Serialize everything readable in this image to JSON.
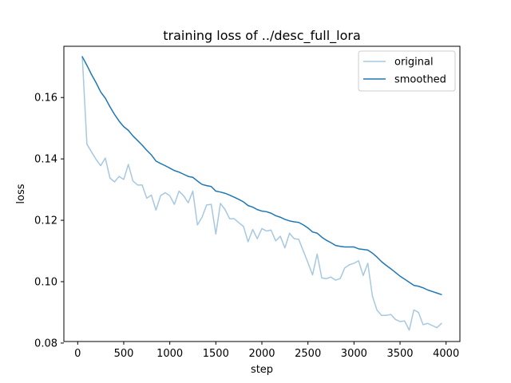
{
  "chart_data": {
    "type": "line",
    "title": "training loss of ../desc_full_lora",
    "xlabel": "step",
    "ylabel": "loss",
    "xlim": [
      -150,
      4150
    ],
    "ylim": [
      0.0805,
      0.1767
    ],
    "xticks": [
      0,
      500,
      1000,
      1500,
      2000,
      2500,
      3000,
      3500,
      4000
    ],
    "xtick_labels": [
      "0",
      "500",
      "1000",
      "1500",
      "2000",
      "2500",
      "3000",
      "3500",
      "4000"
    ],
    "yticks": [
      0.08,
      0.1,
      0.12,
      0.14,
      0.16
    ],
    "ytick_labels": [
      "0.08",
      "0.10",
      "0.12",
      "0.14",
      "0.16"
    ],
    "grid": false,
    "legend_position": "top-right",
    "series": [
      {
        "name": "original",
        "color": "#a6c8e0",
        "x": [
          50,
          100,
          150,
          200,
          250,
          300,
          350,
          400,
          450,
          500,
          550,
          600,
          650,
          700,
          750,
          800,
          850,
          900,
          950,
          1000,
          1050,
          1100,
          1150,
          1200,
          1250,
          1300,
          1350,
          1400,
          1450,
          1500,
          1550,
          1600,
          1650,
          1700,
          1750,
          1800,
          1850,
          1900,
          1950,
          2000,
          2050,
          2100,
          2150,
          2200,
          2250,
          2300,
          2350,
          2400,
          2450,
          2500,
          2550,
          2600,
          2650,
          2700,
          2750,
          2800,
          2850,
          2900,
          2950,
          3000,
          3050,
          3100,
          3150,
          3200,
          3250,
          3300,
          3350,
          3400,
          3450,
          3500,
          3550,
          3600,
          3650,
          3700,
          3750,
          3800,
          3850,
          3900,
          3950
        ],
        "y": [
          0.1733,
          0.1448,
          0.1423,
          0.1398,
          0.1378,
          0.1403,
          0.1338,
          0.1325,
          0.1343,
          0.1333,
          0.1382,
          0.1328,
          0.1315,
          0.1315,
          0.1272,
          0.1282,
          0.1233,
          0.128,
          0.129,
          0.128,
          0.1252,
          0.1295,
          0.128,
          0.1257,
          0.1295,
          0.1185,
          0.121,
          0.125,
          0.1252,
          0.1155,
          0.1255,
          0.1235,
          0.1205,
          0.1205,
          0.1192,
          0.118,
          0.113,
          0.117,
          0.114,
          0.1173,
          0.1165,
          0.1168,
          0.1133,
          0.1148,
          0.111,
          0.1158,
          0.114,
          0.1138,
          0.11,
          0.1062,
          0.1022,
          0.109,
          0.1012,
          0.101,
          0.1015,
          0.1005,
          0.101,
          0.1045,
          0.1055,
          0.106,
          0.1068,
          0.102,
          0.106,
          0.0953,
          0.0907,
          0.089,
          0.089,
          0.0893,
          0.0877,
          0.087,
          0.0872,
          0.0842,
          0.0908,
          0.09,
          0.086,
          0.0864,
          0.0857,
          0.085,
          0.0864
        ]
      },
      {
        "name": "smoothed",
        "color": "#1f77b4",
        "x": [
          50,
          100,
          150,
          200,
          250,
          300,
          350,
          400,
          450,
          500,
          550,
          600,
          650,
          700,
          750,
          800,
          850,
          900,
          950,
          1000,
          1050,
          1100,
          1150,
          1200,
          1250,
          1300,
          1350,
          1400,
          1450,
          1500,
          1550,
          1600,
          1650,
          1700,
          1750,
          1800,
          1850,
          1900,
          1950,
          2000,
          2050,
          2100,
          2150,
          2200,
          2250,
          2300,
          2350,
          2400,
          2450,
          2500,
          2550,
          2600,
          2650,
          2700,
          2750,
          2800,
          2850,
          2900,
          2950,
          3000,
          3050,
          3100,
          3150,
          3200,
          3250,
          3300,
          3350,
          3400,
          3450,
          3500,
          3550,
          3600,
          3650,
          3700,
          3750,
          3800,
          3850,
          3900,
          3950
        ],
        "y": [
          0.1733,
          0.1705,
          0.1675,
          0.1648,
          0.1618,
          0.1598,
          0.157,
          0.1545,
          0.1523,
          0.1505,
          0.1493,
          0.1475,
          0.146,
          0.1445,
          0.1428,
          0.1413,
          0.1393,
          0.1385,
          0.1378,
          0.137,
          0.1362,
          0.1357,
          0.135,
          0.1343,
          0.134,
          0.1328,
          0.1317,
          0.1313,
          0.131,
          0.1295,
          0.1292,
          0.1288,
          0.1282,
          0.1275,
          0.1268,
          0.126,
          0.1248,
          0.1243,
          0.1235,
          0.123,
          0.1228,
          0.1223,
          0.1215,
          0.121,
          0.1203,
          0.1198,
          0.1195,
          0.1193,
          0.1185,
          0.1175,
          0.1162,
          0.1158,
          0.1145,
          0.1135,
          0.1127,
          0.1118,
          0.1115,
          0.1113,
          0.1113,
          0.1113,
          0.1107,
          0.1105,
          0.1103,
          0.1093,
          0.108,
          0.1065,
          0.1053,
          0.1042,
          0.103,
          0.1018,
          0.1008,
          0.0998,
          0.0988,
          0.0985,
          0.098,
          0.0973,
          0.0968,
          0.0963,
          0.0958
        ]
      }
    ]
  }
}
